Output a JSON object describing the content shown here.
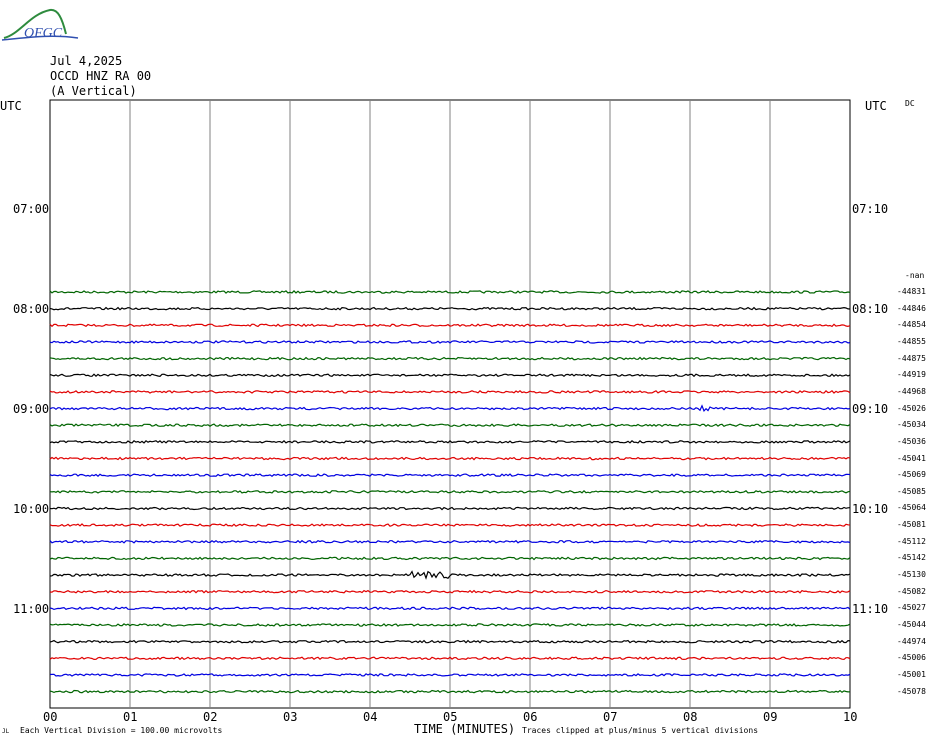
{
  "logo": {
    "text": "OFGC"
  },
  "header": {
    "date": "Jul 4,2025",
    "station": "OCCD HNZ RA 00",
    "component": "(A Vertical)"
  },
  "left_axis": {
    "title": "UTC",
    "labels": [
      "07:00",
      "08:00",
      "09:00",
      "10:00",
      "11:00"
    ]
  },
  "right_axis": {
    "title": "UTC",
    "labels": [
      "07:10",
      "08:10",
      "09:10",
      "10:10",
      "11:10"
    ],
    "dc_label": "DC",
    "nan_label": "-nan"
  },
  "footer": {
    "scale_note": "Each Vertical Division =  100.00 microvolts",
    "clip_note": "Traces clipped at plus/minus 5 vertical divisions",
    "corner_mark": "JL"
  },
  "colors": {
    "green": "#006400",
    "black": "#000000",
    "red": "#e00000",
    "blue": "#0000e0",
    "grid": "#808080"
  },
  "chart_data": {
    "type": "line",
    "title": "",
    "xlabel": "TIME (MINUTES)",
    "ylabel": "UTC",
    "x_ticks": [
      "00",
      "01",
      "02",
      "03",
      "04",
      "05",
      "06",
      "07",
      "08",
      "09",
      "10"
    ],
    "xlim": [
      0,
      10
    ],
    "series": [
      {
        "dc": "-44831",
        "color": "green"
      },
      {
        "dc": "-44846",
        "color": "black"
      },
      {
        "dc": "-44854",
        "color": "red"
      },
      {
        "dc": "-44855",
        "color": "blue"
      },
      {
        "dc": "-44875",
        "color": "green"
      },
      {
        "dc": "-44919",
        "color": "black"
      },
      {
        "dc": "-44968",
        "color": "red"
      },
      {
        "dc": "-45026",
        "color": "blue"
      },
      {
        "dc": "-45034",
        "color": "green"
      },
      {
        "dc": "-45036",
        "color": "black"
      },
      {
        "dc": "-45041",
        "color": "red"
      },
      {
        "dc": "-45069",
        "color": "blue"
      },
      {
        "dc": "-45085",
        "color": "green"
      },
      {
        "dc": "-45064",
        "color": "black"
      },
      {
        "dc": "-45081",
        "color": "red"
      },
      {
        "dc": "-45112",
        "color": "blue"
      },
      {
        "dc": "-45142",
        "color": "green"
      },
      {
        "dc": "-45130",
        "color": "black"
      },
      {
        "dc": "-45082",
        "color": "red"
      },
      {
        "dc": "-45027",
        "color": "blue"
      },
      {
        "dc": "-45044",
        "color": "green"
      },
      {
        "dc": "-44974",
        "color": "black"
      },
      {
        "dc": "-45006",
        "color": "red"
      },
      {
        "dc": "-45001",
        "color": "blue"
      },
      {
        "dc": "-45078",
        "color": "green"
      }
    ]
  }
}
